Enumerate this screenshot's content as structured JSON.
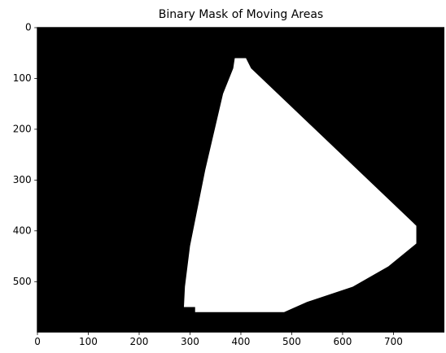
{
  "chart_data": {
    "type": "image",
    "title": "Binary Mask of Moving Areas",
    "background": "#000000",
    "color": "#ffffff",
    "xlim": [
      -0.5,
      799.5
    ],
    "ylim": [
      599.5,
      -0.5
    ],
    "xticks": [
      0,
      100,
      200,
      300,
      400,
      500,
      600,
      700
    ],
    "yticks": [
      0,
      100,
      200,
      300,
      400,
      500
    ],
    "regions": [
      {
        "x": [
          388,
          410,
          420,
          745,
          745,
          690,
          620,
          530,
          485,
          310,
          310,
          288,
          290,
          300,
          330,
          365,
          385
        ],
        "y": [
          60,
          60,
          80,
          390,
          425,
          470,
          510,
          540,
          560,
          560,
          550,
          550,
          510,
          430,
          280,
          130,
          80
        ]
      }
    ]
  }
}
